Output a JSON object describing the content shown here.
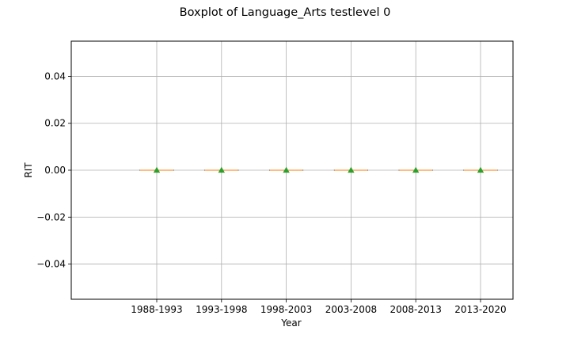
{
  "chart_data": {
    "type": "box",
    "title": "Boxplot of Language_Arts testlevel 0",
    "xlabel": "Year",
    "ylabel": "RIT",
    "categories": [
      "1988-1993",
      "1993-1998",
      "1998-2003",
      "2003-2008",
      "2008-2013",
      "2013-2020"
    ],
    "boxes": [
      {
        "min": 0,
        "q1": 0,
        "median": 0,
        "q3": 0,
        "max": 0,
        "mean": 0
      },
      {
        "min": 0,
        "q1": 0,
        "median": 0,
        "q3": 0,
        "max": 0,
        "mean": 0
      },
      {
        "min": 0,
        "q1": 0,
        "median": 0,
        "q3": 0,
        "max": 0,
        "mean": 0
      },
      {
        "min": 0,
        "q1": 0,
        "median": 0,
        "q3": 0,
        "max": 0,
        "mean": 0
      },
      {
        "min": 0,
        "q1": 0,
        "median": 0,
        "q3": 0,
        "max": 0,
        "mean": 0
      },
      {
        "min": 0,
        "q1": 0,
        "median": 0,
        "q3": 0,
        "max": 0,
        "mean": 0
      }
    ],
    "yticks": [
      -0.04,
      -0.02,
      0.0,
      0.02,
      0.04
    ],
    "ytick_labels": [
      "−0.04",
      "−0.02",
      "0.00",
      "0.02",
      "0.04"
    ],
    "ylim": [
      -0.055,
      0.055
    ],
    "grid": true,
    "colors": {
      "median": "#ff7f0e",
      "mean_marker": "#2ca02c",
      "box": "#000000",
      "grid": "#b0b0b0"
    }
  }
}
